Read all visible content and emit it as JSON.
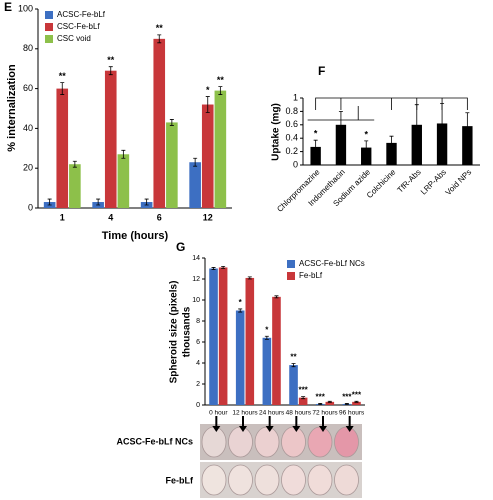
{
  "chart_data": [
    {
      "type": "bar",
      "panel": "E",
      "ylabel": "% internalization",
      "xlabel": "Time (hours)",
      "categories": [
        "1",
        "4",
        "6",
        "12"
      ],
      "series": [
        {
          "name": "ACSC-Fe-bLf",
          "color": "#3d6fc2",
          "values": [
            3,
            3,
            3,
            23
          ],
          "errors": [
            1.5,
            1.5,
            1.5,
            2
          ],
          "annotations": [
            null,
            null,
            null,
            null
          ]
        },
        {
          "name": "CSC-Fe-bLf",
          "color": "#c8373a",
          "values": [
            60,
            69,
            85,
            52
          ],
          "errors": [
            3,
            2,
            2,
            4
          ],
          "annotations": [
            "**",
            "**",
            "**",
            "*"
          ]
        },
        {
          "name": "CSC void",
          "color": "#8dc04a",
          "values": [
            22,
            27,
            43,
            59
          ],
          "errors": [
            1.5,
            2,
            1.5,
            2
          ],
          "annotations": [
            null,
            null,
            null,
            "**"
          ]
        }
      ],
      "ylim": [
        0,
        100
      ],
      "yticks": [
        0,
        20,
        40,
        60,
        80,
        100
      ],
      "legend": "top-left"
    },
    {
      "type": "bar",
      "panel": "F",
      "ylabel": "Uptake (mg)",
      "categories": [
        "Chlorpromazine",
        "Indomethacin",
        "Sodium azide",
        "Colchicine",
        "TfR-Abs",
        "LRP-Abs",
        "Void NPs"
      ],
      "values": [
        0.27,
        0.6,
        0.26,
        0.33,
        0.6,
        0.62,
        0.58
      ],
      "errors": [
        0.1,
        0.2,
        0.1,
        0.1,
        0.3,
        0.3,
        0.2
      ],
      "annotations": [
        "*",
        null,
        "*",
        null,
        null,
        null,
        null
      ],
      "color": "#000000",
      "ylim": [
        0,
        1
      ],
      "yticks": [
        0,
        0.2,
        0.4,
        0.6,
        0.8,
        1
      ]
    },
    {
      "type": "bar",
      "panel": "G",
      "ylabel": [
        "Spheroid size (pixels)",
        "thousands"
      ],
      "categories": [
        "0 hour",
        "12 hours",
        "24 hours",
        "48 hours",
        "72 hours",
        "96 hours"
      ],
      "series": [
        {
          "name": "ACSC-Fe-bLf NCs",
          "color": "#3d6fc2",
          "values": [
            13.0,
            9.0,
            6.4,
            3.8,
            0.1,
            0.1
          ],
          "errors": [
            0.1,
            0.15,
            0.15,
            0.15,
            0.05,
            0.05
          ],
          "annotations": [
            null,
            "*",
            "*",
            "**",
            "***",
            "***"
          ]
        },
        {
          "name": "Fe-bLf",
          "color": "#c8373a",
          "values": [
            13.1,
            12.1,
            10.3,
            0.7,
            0.3,
            0.3
          ],
          "errors": [
            0.1,
            0.1,
            0.1,
            0.1,
            0.05,
            0.05
          ],
          "annotations": [
            null,
            null,
            null,
            "***",
            null,
            "***"
          ]
        }
      ],
      "ylim": [
        0,
        14
      ],
      "yticks": [
        0,
        2,
        4,
        6,
        8,
        10,
        12,
        14
      ],
      "legend": "top-right"
    }
  ],
  "photo_rows": [
    "ACSC-Fe-bLf NCs",
    "Fe-bLf"
  ]
}
